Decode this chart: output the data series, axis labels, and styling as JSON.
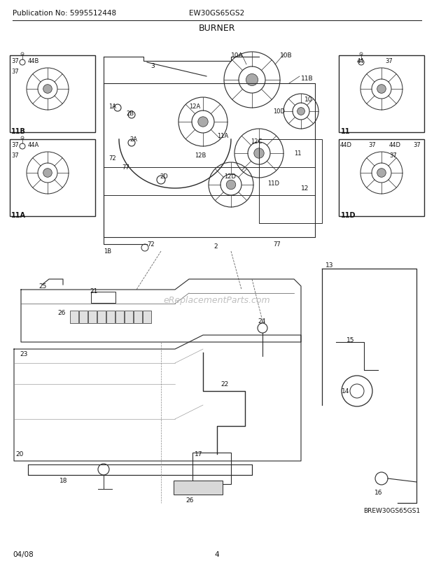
{
  "pub_no": "Publication No: 5995512448",
  "model": "EW30GS65GS2",
  "section": "BURNER",
  "date": "04/08",
  "page": "4",
  "watermark": "eReplacementParts.com",
  "diagram_id": "BREW30GS65GS1",
  "bg_color": "#ffffff",
  "line_color": "#2a2a2a",
  "fig_width": 6.2,
  "fig_height": 8.03,
  "dpi": 100
}
